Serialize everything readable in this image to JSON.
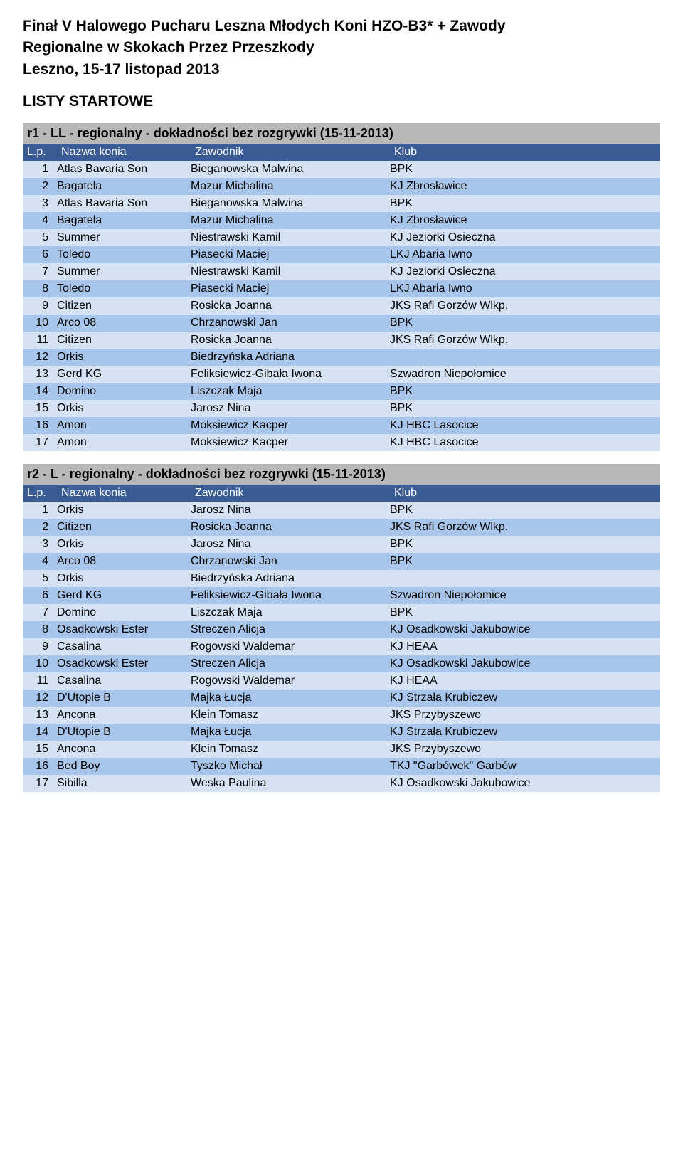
{
  "doc": {
    "title_line1": "Finał V Halowego Pucharu Leszna Młodych Koni HZO-B3* + Zawody",
    "title_line2": "Regionalne w Skokach Przez Przeszkody",
    "title_line3": "Leszno, 15-17 listopad 2013",
    "section_heading": "LISTY STARTOWE"
  },
  "header_labels": {
    "lp": "L.p.",
    "horse": "Nazwa konia",
    "rider": "Zawodnik",
    "club": "Klub"
  },
  "colors": {
    "round_title_bg": "#b8b8b8",
    "header_bg": "#3a5b93",
    "header_fg": "#ffffff",
    "row_even_bg": "#d4e2f4",
    "row_odd_bg": "#a8c6eb",
    "page_bg": "#ffffff",
    "text": "#000000"
  },
  "rounds": [
    {
      "title": "r1 - LL - regionalny - dokładności bez rozgrywki (15-11-2013)",
      "rows": [
        {
          "lp": "1",
          "horse": "Atlas Bavaria Son",
          "rider": "Bieganowska Malwina",
          "club": "BPK"
        },
        {
          "lp": "2",
          "horse": "Bagatela",
          "rider": "Mazur Michalina",
          "club": "KJ Zbrosławice"
        },
        {
          "lp": "3",
          "horse": "Atlas Bavaria Son",
          "rider": "Bieganowska Malwina",
          "club": "BPK"
        },
        {
          "lp": "4",
          "horse": "Bagatela",
          "rider": "Mazur Michalina",
          "club": "KJ Zbrosławice"
        },
        {
          "lp": "5",
          "horse": "Summer",
          "rider": "Niestrawski Kamil",
          "club": "KJ Jeziorki Osieczna"
        },
        {
          "lp": "6",
          "horse": "Toledo",
          "rider": "Piasecki Maciej",
          "club": "LKJ Abaria Iwno"
        },
        {
          "lp": "7",
          "horse": "Summer",
          "rider": "Niestrawski Kamil",
          "club": "KJ Jeziorki Osieczna"
        },
        {
          "lp": "8",
          "horse": "Toledo",
          "rider": "Piasecki Maciej",
          "club": "LKJ Abaria Iwno"
        },
        {
          "lp": "9",
          "horse": "Citizen",
          "rider": "Rosicka Joanna",
          "club": "JKS Rafi Gorzów Wlkp."
        },
        {
          "lp": "10",
          "horse": "Arco 08",
          "rider": "Chrzanowski Jan",
          "club": "BPK"
        },
        {
          "lp": "11",
          "horse": "Citizen",
          "rider": "Rosicka Joanna",
          "club": "JKS Rafi Gorzów Wlkp."
        },
        {
          "lp": "12",
          "horse": "Orkis",
          "rider": "Biedrzyńska Adriana",
          "club": ""
        },
        {
          "lp": "13",
          "horse": "Gerd KG",
          "rider": "Feliksiewicz-Gibała Iwona",
          "club": "Szwadron Niepołomice"
        },
        {
          "lp": "14",
          "horse": "Domino",
          "rider": "Liszczak Maja",
          "club": "BPK"
        },
        {
          "lp": "15",
          "horse": "Orkis",
          "rider": "Jarosz Nina",
          "club": "BPK"
        },
        {
          "lp": "16",
          "horse": "Amon",
          "rider": "Moksiewicz Kacper",
          "club": "KJ HBC Lasocice"
        },
        {
          "lp": "17",
          "horse": "Amon",
          "rider": "Moksiewicz Kacper",
          "club": "KJ HBC Lasocice"
        }
      ]
    },
    {
      "title": "r2 - L - regionalny - dokładności bez rozgrywki (15-11-2013)",
      "rows": [
        {
          "lp": "1",
          "horse": "Orkis",
          "rider": "Jarosz Nina",
          "club": "BPK"
        },
        {
          "lp": "2",
          "horse": "Citizen",
          "rider": "Rosicka Joanna",
          "club": "JKS Rafi Gorzów Wlkp."
        },
        {
          "lp": "3",
          "horse": "Orkis",
          "rider": "Jarosz Nina",
          "club": "BPK"
        },
        {
          "lp": "4",
          "horse": "Arco 08",
          "rider": "Chrzanowski Jan",
          "club": "BPK"
        },
        {
          "lp": "5",
          "horse": "Orkis",
          "rider": "Biedrzyńska Adriana",
          "club": ""
        },
        {
          "lp": "6",
          "horse": "Gerd KG",
          "rider": "Feliksiewicz-Gibała Iwona",
          "club": "Szwadron Niepołomice"
        },
        {
          "lp": "7",
          "horse": "Domino",
          "rider": "Liszczak Maja",
          "club": "BPK"
        },
        {
          "lp": "8",
          "horse": "Osadkowski Ester",
          "rider": "Streczen Alicja",
          "club": "KJ Osadkowski Jakubowice"
        },
        {
          "lp": "9",
          "horse": "Casalina",
          "rider": "Rogowski Waldemar",
          "club": "KJ HEAA"
        },
        {
          "lp": "10",
          "horse": "Osadkowski Ester",
          "rider": "Streczen Alicja",
          "club": "KJ Osadkowski Jakubowice"
        },
        {
          "lp": "11",
          "horse": "Casalina",
          "rider": "Rogowski Waldemar",
          "club": "KJ HEAA"
        },
        {
          "lp": "12",
          "horse": "D'Utopie B",
          "rider": "Majka Łucja",
          "club": "KJ Strzała Krubiczew"
        },
        {
          "lp": "13",
          "horse": "Ancona",
          "rider": "Klein Tomasz",
          "club": "JKS Przybyszewo"
        },
        {
          "lp": "14",
          "horse": "D'Utopie B",
          "rider": "Majka Łucja",
          "club": "KJ Strzała Krubiczew"
        },
        {
          "lp": "15",
          "horse": "Ancona",
          "rider": "Klein Tomasz",
          "club": "JKS Przybyszewo"
        },
        {
          "lp": "16",
          "horse": "Bed Boy",
          "rider": "Tyszko Michał",
          "club": "TKJ \"Garbówek\" Garbów"
        },
        {
          "lp": "17",
          "horse": "Sibilla",
          "rider": "Weska Paulina",
          "club": "KJ Osadkowski Jakubowice"
        }
      ]
    }
  ]
}
